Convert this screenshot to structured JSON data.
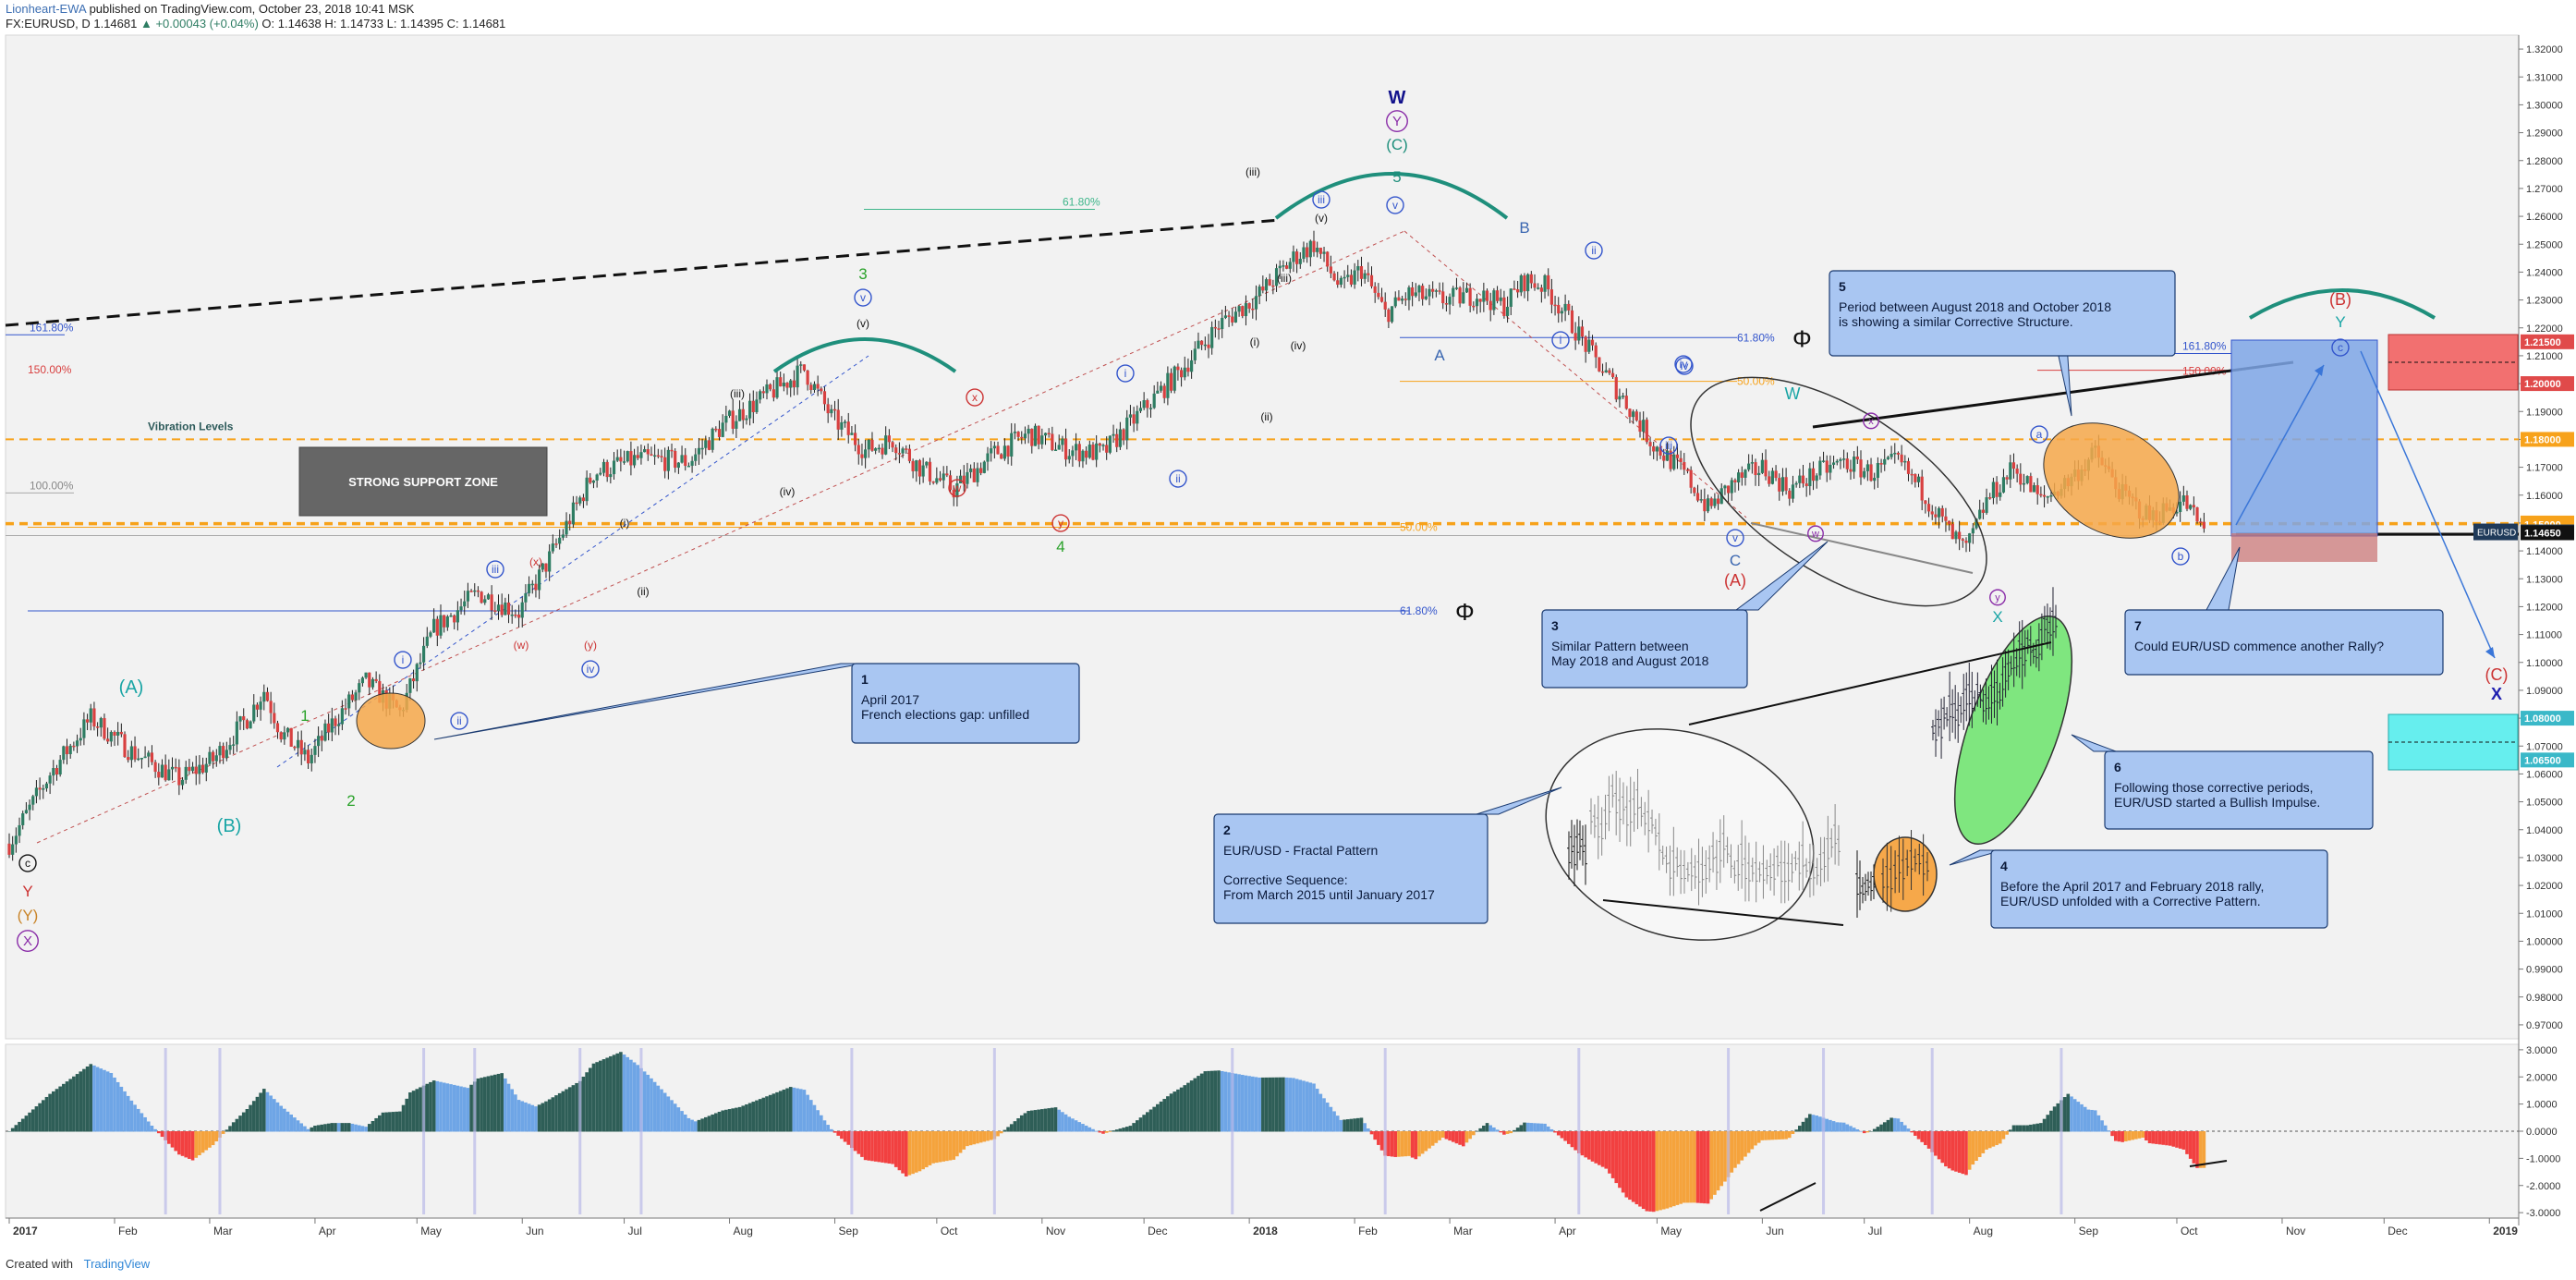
{
  "header": {
    "author": "Lionheart-EWA",
    "published": "published on TradingView.com, October 23, 2018 10:41 MSK",
    "symbol": "FX:EURUSD, D",
    "last": "1.14681",
    "change": "▲ +0.00043 (+0.04%)",
    "ohlc_o": "O: 1.14638",
    "ohlc_h": "H: 1.14733",
    "ohlc_l": "L: 1.14395",
    "ohlc_c": "C: 1.14681"
  },
  "footer": {
    "created_with": "Created with",
    "brand": "TradingView"
  },
  "colors": {
    "up": "#2e7d63",
    "down": "#d84040",
    "osc_pos_dark": "#2e5e57",
    "osc_pos_light": "#6ea5e6",
    "osc_neg_red": "#f24040",
    "osc_neg_orange": "#f5a33c",
    "callout": "#a9c6f2",
    "support": "#666666",
    "level_orange": "#f7a21b",
    "level_blue": "#3355cc"
  },
  "chart_data": {
    "type": "candlestick",
    "symbol": "EURUSD",
    "timeframe": "D",
    "x_tick_labels": [
      "2017",
      "Feb",
      "Mar",
      "Apr",
      "May",
      "Jun",
      "Jul",
      "Aug",
      "Sep",
      "Oct",
      "Nov",
      "Dec",
      "2018",
      "Feb",
      "Mar",
      "Apr",
      "May",
      "Jun",
      "Jul",
      "Aug",
      "Sep",
      "Oct",
      "Nov",
      "Dec",
      "2019"
    ],
    "y_tick_labels": [
      "1.32000",
      "1.31000",
      "1.30000",
      "1.29000",
      "1.28000",
      "1.27000",
      "1.26000",
      "1.25000",
      "1.24000",
      "1.23000",
      "1.22000",
      "1.21000",
      "1.20000",
      "1.19000",
      "1.18000",
      "1.17000",
      "1.16000",
      "1.15000",
      "1.14000",
      "1.13000",
      "1.12000",
      "1.11000",
      "1.10000",
      "1.09000",
      "1.08000",
      "1.07000",
      "1.06000",
      "1.05000",
      "1.04000",
      "1.03000",
      "1.02000",
      "1.01000",
      "1.00000",
      "0.99000",
      "0.98000",
      "0.97000"
    ],
    "ylim": [
      0.965,
      1.325
    ],
    "price_path": [
      [
        0,
        1.035
      ],
      [
        12,
        1.06
      ],
      [
        24,
        1.08
      ],
      [
        36,
        1.068
      ],
      [
        50,
        1.058
      ],
      [
        60,
        1.065
      ],
      [
        70,
        1.08
      ],
      [
        75,
        1.09
      ],
      [
        80,
        1.075
      ],
      [
        88,
        1.065
      ],
      [
        95,
        1.078
      ],
      [
        105,
        1.093
      ],
      [
        115,
        1.082
      ],
      [
        125,
        1.112
      ],
      [
        138,
        1.125
      ],
      [
        150,
        1.118
      ],
      [
        158,
        1.135
      ],
      [
        172,
        1.168
      ],
      [
        185,
        1.173
      ],
      [
        200,
        1.172
      ],
      [
        210,
        1.185
      ],
      [
        222,
        1.195
      ],
      [
        234,
        1.205
      ],
      [
        242,
        1.188
      ],
      [
        252,
        1.176
      ],
      [
        260,
        1.18
      ],
      [
        268,
        1.17
      ],
      [
        278,
        1.162
      ],
      [
        290,
        1.175
      ],
      [
        300,
        1.182
      ],
      [
        312,
        1.176
      ],
      [
        322,
        1.175
      ],
      [
        334,
        1.191
      ],
      [
        345,
        1.205
      ],
      [
        356,
        1.221
      ],
      [
        368,
        1.232
      ],
      [
        378,
        1.245
      ],
      [
        384,
        1.25
      ],
      [
        392,
        1.234
      ],
      [
        398,
        1.241
      ],
      [
        405,
        1.225
      ],
      [
        412,
        1.232
      ],
      [
        422,
        1.23
      ],
      [
        432,
        1.232
      ],
      [
        440,
        1.228
      ],
      [
        446,
        1.237
      ],
      [
        452,
        1.235
      ],
      [
        458,
        1.225
      ],
      [
        466,
        1.21
      ],
      [
        476,
        1.193
      ],
      [
        484,
        1.178
      ],
      [
        493,
        1.168
      ],
      [
        500,
        1.155
      ],
      [
        508,
        1.165
      ],
      [
        516,
        1.17
      ],
      [
        524,
        1.162
      ],
      [
        532,
        1.168
      ],
      [
        540,
        1.172
      ],
      [
        548,
        1.168
      ],
      [
        556,
        1.172
      ],
      [
        564,
        1.16
      ],
      [
        572,
        1.145
      ],
      [
        576,
        1.14
      ],
      [
        582,
        1.158
      ],
      [
        590,
        1.17
      ],
      [
        598,
        1.158
      ],
      [
        606,
        1.165
      ],
      [
        614,
        1.175
      ],
      [
        622,
        1.16
      ],
      [
        630,
        1.152
      ],
      [
        640,
        1.158
      ],
      [
        646,
        1.147
      ]
    ],
    "fractal_2015_2017_path": [
      [
        0,
        1.08
      ],
      [
        10,
        1.12
      ],
      [
        20,
        1.09
      ],
      [
        30,
        1.12
      ],
      [
        40,
        1.08
      ],
      [
        50,
        1.11
      ],
      [
        60,
        1.09
      ],
      [
        70,
        1.12
      ],
      [
        80,
        1.1
      ],
      [
        90,
        1.08
      ],
      [
        95,
        1.05
      ],
      [
        100,
        1.04
      ]
    ],
    "oscillator": {
      "name": "Awesome Oscillator",
      "y_tick_labels": [
        "3.0000",
        "2.0000",
        "1.0000",
        "0.0000",
        "-1.0000",
        "-2.0000",
        "-3.0000"
      ],
      "ylim": [
        -3.2,
        3.2
      ]
    },
    "levels": [
      {
        "label": "161.80%",
        "color": "#3355cc"
      },
      {
        "label": "150.00%",
        "color": "#d84040"
      },
      {
        "label": "100.00%",
        "color": "#888888"
      },
      {
        "label": "61.80%",
        "color": "#3fb68b"
      },
      {
        "label": "61.80%",
        "color": "#3355cc"
      },
      {
        "label": "50.00%",
        "color": "#f7a21b"
      },
      {
        "label": "50.00%",
        "color": "#f7a21b"
      },
      {
        "label": "61.80%",
        "color": "#3355cc"
      }
    ],
    "price_tags": [
      "1.21500",
      "1.20000",
      "1.18000",
      "1.15000",
      "1.15000",
      "1.14681",
      "1.14650",
      "1.08000",
      "1.06500"
    ],
    "vibration_label": "Vibration Levels",
    "support_zone_label": "STRONG SUPPORT ZONE",
    "phi": "Φ",
    "last_tag_symbol": "EURUSD"
  },
  "callouts": [
    {
      "num": "1",
      "lines": [
        "April 2017",
        "French elections gap: unfilled"
      ]
    },
    {
      "num": "2",
      "lines": [
        "EUR/USD - Fractal Pattern",
        "",
        "Corrective Sequence:",
        "From March 2015 until January 2017"
      ]
    },
    {
      "num": "3",
      "lines": [
        "Similar Pattern between",
        "May 2018 and August 2018"
      ]
    },
    {
      "num": "4",
      "lines": [
        "Before the April 2017 and February 2018 rally,",
        "EUR/USD unfolded with a Corrective Pattern."
      ]
    },
    {
      "num": "5",
      "lines": [
        "Period between August 2018 and October 2018",
        "is showing a similar Corrective Structure."
      ]
    },
    {
      "num": "6",
      "lines": [
        "Following those corrective periods,",
        "EUR/USD started a Bullish Impulse."
      ]
    },
    {
      "num": "7",
      "lines": [
        "Could EUR/USD commence another Rally?"
      ]
    }
  ],
  "wave_labels": [
    "W",
    "Y",
    "(C)",
    "5",
    "iii",
    "v",
    "(v)",
    "(iii)",
    "(iv)",
    "B",
    "ii",
    "A",
    "iv",
    "i",
    "3",
    "v",
    "(v)",
    "(iii)",
    "(iv)",
    "x",
    "w",
    "y",
    "4",
    "i",
    "ii",
    "(i)",
    "(ii)",
    "iii",
    "(x)",
    "(w)",
    "(y)",
    "iv",
    "1",
    "2",
    "(A)",
    "(B)",
    "c",
    "Y",
    "(Y)",
    "X",
    "i",
    "ii",
    "(iii)",
    "(ii)",
    "(i)",
    "W",
    "x",
    "w",
    "C",
    "(A)",
    "v",
    "iii",
    "iv",
    "y",
    "X",
    "a",
    "b",
    "(B)",
    "Y",
    "c",
    "(C)",
    "X"
  ]
}
